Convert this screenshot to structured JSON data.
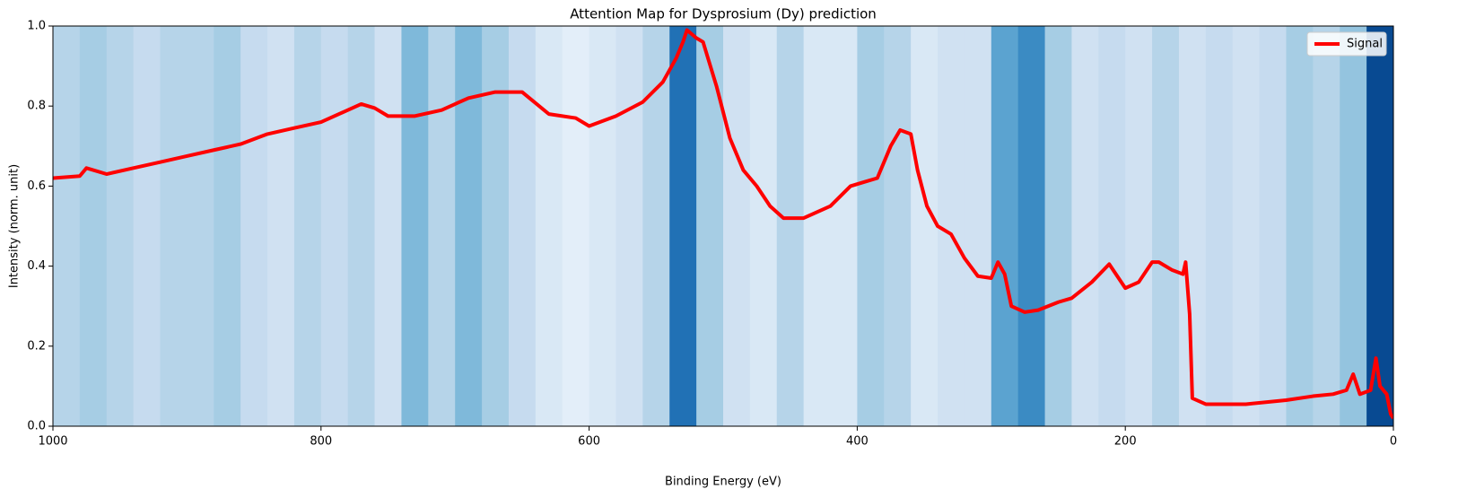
{
  "chart_data": {
    "type": "line",
    "title": "Attention Map for Dysprosium (Dy) prediction",
    "xlabel": "Binding Energy (eV)",
    "ylabel": "Intensity (norm. unit)",
    "x": [
      1000,
      980,
      975,
      960,
      940,
      920,
      900,
      880,
      860,
      840,
      820,
      800,
      780,
      770,
      760,
      750,
      730,
      710,
      690,
      670,
      650,
      630,
      610,
      600,
      580,
      560,
      545,
      535,
      530,
      527,
      520,
      515,
      505,
      495,
      485,
      475,
      465,
      455,
      440,
      420,
      405,
      395,
      385,
      375,
      368,
      360,
      355,
      348,
      340,
      330,
      320,
      310,
      300,
      295,
      290,
      285,
      275,
      265,
      250,
      240,
      225,
      212,
      200,
      190,
      180,
      175,
      165,
      157,
      155,
      152,
      150,
      140,
      110,
      80,
      60,
      45,
      35,
      30,
      25,
      17,
      13,
      10,
      5,
      2,
      0
    ],
    "series": [
      {
        "name": "Signal",
        "color": "#ff0000",
        "values": [
          0.62,
          0.625,
          0.645,
          0.63,
          0.645,
          0.66,
          0.675,
          0.69,
          0.705,
          0.73,
          0.745,
          0.76,
          0.79,
          0.805,
          0.795,
          0.775,
          0.775,
          0.79,
          0.82,
          0.835,
          0.835,
          0.78,
          0.77,
          0.75,
          0.775,
          0.81,
          0.86,
          0.92,
          0.96,
          0.99,
          0.97,
          0.96,
          0.85,
          0.72,
          0.64,
          0.6,
          0.55,
          0.52,
          0.52,
          0.55,
          0.6,
          0.61,
          0.62,
          0.7,
          0.74,
          0.73,
          0.64,
          0.55,
          0.5,
          0.48,
          0.42,
          0.375,
          0.37,
          0.41,
          0.38,
          0.3,
          0.285,
          0.29,
          0.31,
          0.32,
          0.36,
          0.405,
          0.345,
          0.36,
          0.41,
          0.41,
          0.39,
          0.38,
          0.41,
          0.28,
          0.07,
          0.055,
          0.055,
          0.065,
          0.075,
          0.08,
          0.09,
          0.13,
          0.08,
          0.09,
          0.17,
          0.1,
          0.08,
          0.03,
          0.02
        ]
      }
    ],
    "attention_bins": [
      1000,
      980,
      960,
      940,
      920,
      900,
      880,
      860,
      840,
      820,
      800,
      780,
      760,
      740,
      720,
      700,
      680,
      660,
      640,
      620,
      600,
      580,
      560,
      540,
      520,
      500,
      480,
      460,
      440,
      420,
      400,
      380,
      360,
      340,
      320,
      300,
      280,
      260,
      240,
      220,
      200,
      180,
      160,
      140,
      120,
      100,
      80,
      60,
      40,
      20,
      0
    ],
    "attention": [
      0.3,
      0.35,
      0.3,
      0.25,
      0.3,
      0.3,
      0.35,
      0.25,
      0.2,
      0.3,
      0.25,
      0.3,
      0.2,
      0.45,
      0.3,
      0.45,
      0.35,
      0.25,
      0.15,
      0.1,
      0.15,
      0.2,
      0.3,
      0.75,
      0.35,
      0.2,
      0.15,
      0.3,
      0.15,
      0.15,
      0.35,
      0.3,
      0.15,
      0.2,
      0.2,
      0.55,
      0.65,
      0.35,
      0.2,
      0.25,
      0.2,
      0.3,
      0.2,
      0.25,
      0.2,
      0.25,
      0.35,
      0.3,
      0.4,
      0.9
    ],
    "colormap": "Blues",
    "xlim": [
      1000,
      0
    ],
    "xticks": [
      1000,
      800,
      600,
      400,
      200,
      0
    ],
    "ylim": [
      0,
      1
    ],
    "yticks": [
      {
        "value": 0,
        "label": "0.0"
      },
      {
        "value": 0.2,
        "label": "0.2"
      },
      {
        "value": 0.4,
        "label": "0.4"
      },
      {
        "value": 0.6,
        "label": "0.6"
      },
      {
        "value": 0.8,
        "label": "0.8"
      },
      {
        "value": 1,
        "label": "1.0"
      }
    ],
    "legend": "upper right"
  }
}
